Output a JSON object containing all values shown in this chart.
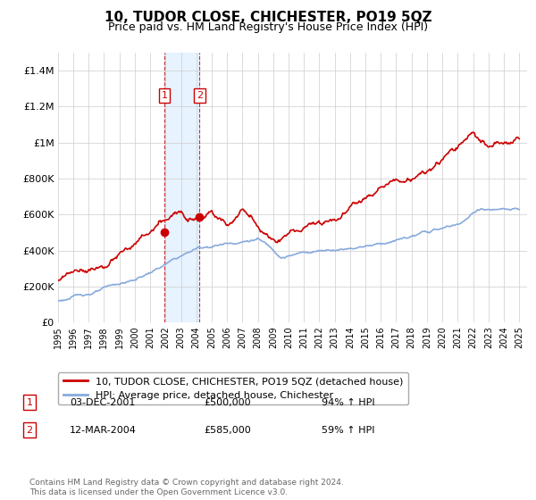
{
  "title": "10, TUDOR CLOSE, CHICHESTER, PO19 5QZ",
  "subtitle": "Price paid vs. HM Land Registry's House Price Index (HPI)",
  "hpi_label": "HPI: Average price, detached house, Chichester",
  "property_label": "10, TUDOR CLOSE, CHICHESTER, PO19 5QZ (detached house)",
  "sale1_date": "03-DEC-2001",
  "sale1_price": 500000,
  "sale1_hpi": "94% ↑ HPI",
  "sale2_date": "12-MAR-2004",
  "sale2_price": 585000,
  "sale2_hpi": "59% ↑ HPI",
  "ylim": [
    0,
    1500000
  ],
  "xlim_start": 1995.0,
  "xlim_end": 2025.5,
  "sale1_x": 2001.92,
  "sale2_x": 2004.21,
  "line_color_property": "#cc0000",
  "line_color_hpi": "#88aadd",
  "shade_color": "#ddeeff",
  "footer": "Contains HM Land Registry data © Crown copyright and database right 2024.\nThis data is licensed under the Open Government Licence v3.0.",
  "yticks": [
    0,
    200000,
    400000,
    600000,
    800000,
    1000000,
    1200000,
    1400000
  ],
  "ytick_labels": [
    "£0",
    "£200K",
    "£400K",
    "£600K",
    "£800K",
    "£1M",
    "£1.2M",
    "£1.4M"
  ],
  "xticks": [
    1995,
    1996,
    1997,
    1998,
    1999,
    2000,
    2001,
    2002,
    2003,
    2004,
    2005,
    2006,
    2007,
    2008,
    2009,
    2010,
    2011,
    2012,
    2013,
    2014,
    2015,
    2016,
    2017,
    2018,
    2019,
    2020,
    2021,
    2022,
    2023,
    2024,
    2025
  ]
}
